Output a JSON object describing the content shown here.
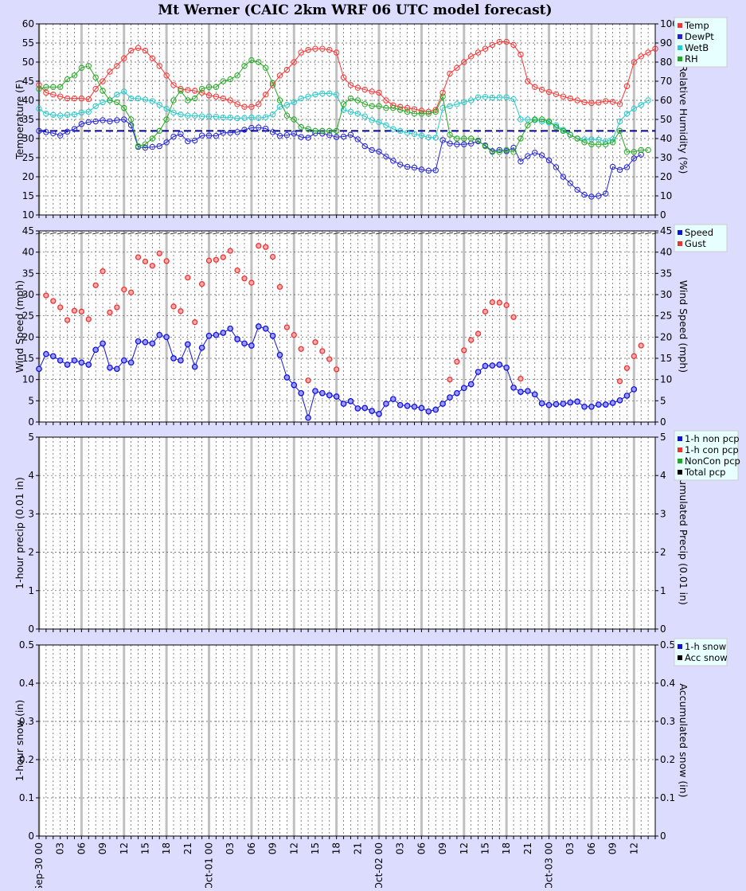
{
  "title": "Mt Werner (CAIC 2km WRF 06 UTC model forecast)",
  "x_ticks": [
    "Sep-30 00",
    "03",
    "06",
    "09",
    "12",
    "15",
    "18",
    "21",
    "Oct-01 00",
    "03",
    "06",
    "09",
    "12",
    "15",
    "18",
    "21",
    "Oct-02 00",
    "03",
    "06",
    "09",
    "12",
    "15",
    "18",
    "21",
    "Oct-03 00",
    "03",
    "06",
    "09",
    "12"
  ],
  "colors": {
    "temp": "#ff3333",
    "dewpt": "#2222dd",
    "wetb": "#22cccc",
    "rh": "#22aa22",
    "gust": "#ee3333",
    "speed": "#1111dd",
    "nonpcp": "#1111dd",
    "conpcp": "#ee3333",
    "noncon": "#22aa22",
    "total": "#000000",
    "freeze": "#000099",
    "background": "#dcdcff",
    "plot_bg": "#ffffff"
  },
  "chart_data": [
    {
      "type": "line",
      "id": "temperature",
      "ylabel_left": "Temperature (F)",
      "ylabel_right": "Relative Humidity (%)",
      "ylim_left": [
        10,
        60
      ],
      "ylim_right": [
        0,
        100
      ],
      "yticks_left": [
        "10",
        "15",
        "20",
        "25",
        "30",
        "35",
        "40",
        "45",
        "50",
        "55",
        "60"
      ],
      "yticks_right": [
        "0",
        "10",
        "20",
        "30",
        "40",
        "50",
        "60",
        "70",
        "80",
        "90",
        "100"
      ],
      "freezing_line": 32,
      "legend": [
        "Temp",
        "DewPt",
        "WetB",
        "RH"
      ],
      "series": [
        {
          "name": "Temp",
          "axis": "left",
          "values": [
            44,
            42,
            41.5,
            41,
            40.5,
            40.5,
            40.5,
            40.3,
            43,
            45,
            47.5,
            49,
            51,
            53,
            53.7,
            53,
            51,
            49,
            46.5,
            44,
            43,
            42.7,
            42.5,
            42,
            41.3,
            41,
            40.5,
            40,
            39,
            38.3,
            38.3,
            39,
            41.5,
            44,
            46.5,
            48,
            50,
            52.5,
            53.2,
            53.5,
            53.5,
            53.2,
            52.5,
            46,
            44,
            43.3,
            42.8,
            42.3,
            42,
            40,
            38.7,
            38.3,
            38,
            37.7,
            37.3,
            37,
            37.5,
            42,
            47,
            48.5,
            50,
            51.5,
            52.5,
            53.5,
            54.5,
            55.3,
            55.3,
            54.5,
            52,
            45,
            43.5,
            42.8,
            42.2,
            41.6,
            41,
            40.5,
            40,
            39.5,
            39.3,
            39.4,
            39.8,
            39.6,
            39,
            43.7,
            50,
            51.5,
            52.5,
            53.5
          ]
        },
        {
          "name": "DewPt",
          "axis": "left",
          "values": [
            32,
            31.7,
            31.4,
            30.8,
            31.8,
            32.5,
            33.8,
            34.3,
            34.5,
            34.8,
            34.5,
            34.8,
            35,
            33.5,
            27.8,
            27.6,
            27.8,
            28,
            29,
            30.5,
            31.2,
            29.3,
            29.5,
            30.8,
            30.8,
            30.7,
            31.5,
            31.5,
            31.7,
            32.3,
            32.8,
            32.9,
            32.6,
            31.7,
            30.7,
            30.9,
            31.3,
            30.4,
            30.2,
            31.4,
            31.3,
            30.9,
            30.4,
            30.5,
            31,
            29.8,
            28,
            27,
            26.6,
            25.3,
            24.2,
            23.2,
            22.6,
            22.4,
            21.9,
            21.6,
            21.7,
            29.6,
            28.7,
            28.5,
            28.5,
            28.7,
            29.3,
            28.2,
            26.7,
            27,
            26.7,
            27.6,
            24,
            25.4,
            26.3,
            25.6,
            24.3,
            22.5,
            20,
            18.3,
            16.6,
            15.3,
            14.8,
            15,
            15.6,
            22.6,
            21.8,
            22.5,
            24.8,
            25.8
          ]
        },
        {
          "name": "WetB",
          "axis": "left",
          "values": [
            37.8,
            36.5,
            36.2,
            36,
            36.2,
            36.3,
            36.8,
            37,
            38.5,
            39.5,
            40,
            41.5,
            42.3,
            40.5,
            40.5,
            40.2,
            39.8,
            38.8,
            37.8,
            36.8,
            36.3,
            36,
            36,
            35.8,
            35.8,
            35.7,
            35.5,
            35.5,
            35.3,
            35.4,
            35.5,
            35.4,
            35.6,
            36.3,
            38.3,
            38.8,
            39.5,
            40.5,
            41,
            41.5,
            41.8,
            41.8,
            41.5,
            37.5,
            37,
            36.5,
            35.8,
            34.8,
            34.3,
            33.5,
            32.5,
            32,
            31.5,
            31.2,
            30.8,
            30.3,
            30.2,
            38,
            38.5,
            39,
            39.5,
            40,
            40.8,
            40.9,
            40.7,
            40.8,
            40.8,
            40.3,
            35,
            35,
            34.8,
            34.5,
            34.2,
            33.5,
            32.3,
            31,
            30,
            29.8,
            29.8,
            29.7,
            29.3,
            29.8,
            34.5,
            36.5,
            37.8,
            38.8,
            40
          ]
        },
        {
          "name": "RH",
          "axis": "right",
          "values": [
            66,
            67,
            67,
            67,
            71,
            73,
            77,
            78,
            72,
            65,
            60,
            59,
            56,
            50,
            36,
            37,
            40,
            44,
            50,
            60,
            65,
            60,
            61,
            66,
            67,
            67,
            70,
            71,
            73,
            78,
            81,
            80,
            77,
            69,
            60,
            52,
            50,
            46,
            45,
            44,
            44,
            44,
            44,
            58,
            61,
            60,
            58,
            57,
            57,
            56,
            56,
            55,
            54,
            53,
            53,
            53,
            54,
            62,
            42,
            40,
            40,
            40,
            39,
            36,
            33,
            33,
            34,
            33,
            40,
            47,
            50,
            50,
            49,
            46,
            44,
            42,
            40,
            38,
            37,
            37,
            37,
            38,
            44,
            33,
            33,
            34,
            34
          ]
        }
      ]
    },
    {
      "type": "scatter",
      "id": "wind",
      "ylabel_left": "Wind Speed (mph)",
      "ylabel_right": "Wind Speed (mph)",
      "ylim": [
        0,
        45
      ],
      "yticks": [
        "0",
        "5",
        "10",
        "15",
        "20",
        "25",
        "30",
        "35",
        "40",
        "45"
      ],
      "legend": [
        "Speed",
        "Gust"
      ],
      "series": [
        {
          "name": "Speed",
          "values": [
            12.5,
            16,
            15.5,
            14.5,
            13.5,
            14.5,
            14,
            13.5,
            17,
            18.5,
            12.8,
            12.5,
            14.5,
            14,
            19,
            18.8,
            18.5,
            20.5,
            20,
            15,
            14.5,
            18.3,
            13,
            17.5,
            20.3,
            20.5,
            21,
            22,
            19.5,
            18.5,
            18,
            22.5,
            22,
            20.3,
            15.8,
            10.5,
            8.7,
            6.8,
            1,
            7.3,
            6.8,
            6.3,
            6,
            4.3,
            4.9,
            3.2,
            3.3,
            2.6,
            1.9,
            4.3,
            5.4,
            4,
            3.8,
            3.6,
            3.3,
            2.5,
            2.9,
            4.3,
            5.8,
            6.8,
            8,
            8.9,
            11.8,
            13.2,
            13.3,
            13.5,
            12.8,
            8.1,
            7.1,
            7.3,
            6.5,
            4.4,
            4,
            4.2,
            4.3,
            4.6,
            4.8,
            3.6,
            3.6,
            4.1,
            4.1,
            4.5,
            5.1,
            6.2,
            7.7
          ]
        },
        {
          "name": "Gust",
          "values": [
            null,
            29.8,
            28.5,
            27,
            24,
            26.2,
            26,
            24.2,
            32.2,
            35.5,
            25.8,
            27,
            31.2,
            30.5,
            38.8,
            37.8,
            36.8,
            39.7,
            37.9,
            27.2,
            26.1,
            34,
            23.5,
            32.5,
            38,
            38.2,
            38.8,
            40.3,
            35.7,
            33.8,
            32.8,
            41.5,
            41.2,
            38.9,
            31.8,
            22.3,
            20.5,
            17.2,
            9.8,
            18.8,
            16.7,
            14.8,
            12.4,
            null,
            null,
            null,
            null,
            null,
            null,
            null,
            null,
            null,
            null,
            null,
            null,
            null,
            null,
            null,
            10,
            14.2,
            16.9,
            19.3,
            20.8,
            26,
            28.2,
            28.1,
            27.5,
            24.7,
            10.2,
            null,
            null,
            null,
            null,
            null,
            null,
            null,
            null,
            null,
            null,
            null,
            null,
            null,
            9.6,
            12.7,
            15.5,
            18
          ]
        }
      ]
    },
    {
      "type": "bar",
      "id": "precip",
      "ylabel_left": "1-hour precip (0.01 in)",
      "ylabel_right": "Accumulated Precip (0.01 in)",
      "ylim": [
        0,
        5
      ],
      "yticks": [
        "0",
        "1",
        "2",
        "3",
        "4",
        "5"
      ],
      "legend": [
        "1-h non pcp",
        "1-h con pcp",
        "NonCon pcp",
        "Total pcp"
      ],
      "series": []
    },
    {
      "type": "bar",
      "id": "snow",
      "ylabel_left": "1-hour snow (in)",
      "ylabel_right": "Accumulated snow (in)",
      "ylim": [
        0,
        0.5
      ],
      "yticks": [
        "0",
        "0.1",
        "0.2",
        "0.3",
        "0.4",
        "0.5"
      ],
      "legend": [
        "1-h snow",
        "Acc snow"
      ],
      "series": []
    }
  ]
}
